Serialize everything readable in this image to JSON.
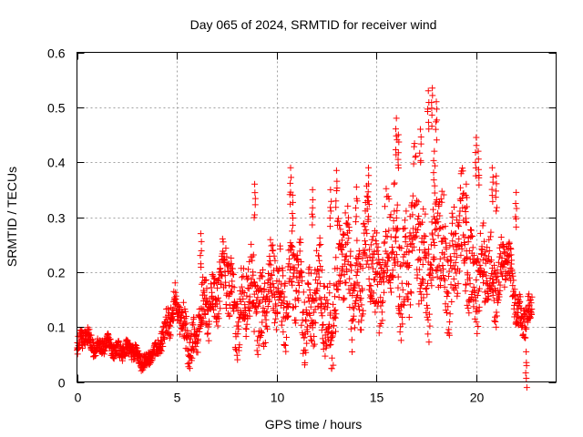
{
  "chart_data": {
    "type": "scatter",
    "title": "Day 065 of 2024, SRMTID for receiver wind",
    "xlabel": "GPS time / hours",
    "ylabel": "SRMTID / TECUs",
    "xlim": [
      0,
      24
    ],
    "ylim": [
      0,
      0.6
    ],
    "xticks": [
      0,
      5,
      10,
      15,
      20
    ],
    "xtick_labels": [
      "0",
      "5",
      "10",
      "15",
      "20"
    ],
    "yticks": [
      0,
      0.1,
      0.2,
      0.3,
      0.4,
      0.5,
      0.6
    ],
    "ytick_labels": [
      "0",
      "0.1",
      "0.2",
      "0.3",
      "0.4",
      "0.5",
      "0.6"
    ],
    "grid": true,
    "marker": "plus",
    "color": "#ff0000",
    "series": [
      {
        "name": "wind",
        "profile": {
          "description": "approximate typical SRMTID level vs time (hours)",
          "x": [
            0,
            0.5,
            1,
            1.5,
            2,
            2.5,
            3,
            3.5,
            4,
            4.5,
            5,
            5.5,
            6,
            6.5,
            7,
            7.5,
            8,
            8.5,
            9,
            9.5,
            10,
            10.5,
            11,
            11.5,
            12,
            12.5,
            13,
            13.5,
            14,
            14.5,
            15,
            15.5,
            16,
            16.5,
            17,
            17.5,
            18,
            18.5,
            19,
            19.5,
            20,
            20.5,
            21,
            21.5,
            22,
            22.5,
            22.8
          ],
          "y": [
            0.06,
            0.08,
            0.07,
            0.06,
            0.065,
            0.055,
            0.05,
            0.04,
            0.05,
            0.12,
            0.13,
            0.09,
            0.08,
            0.14,
            0.18,
            0.17,
            0.15,
            0.13,
            0.16,
            0.15,
            0.17,
            0.18,
            0.16,
            0.15,
            0.14,
            0.12,
            0.18,
            0.2,
            0.19,
            0.21,
            0.2,
            0.22,
            0.24,
            0.22,
            0.25,
            0.24,
            0.23,
            0.22,
            0.25,
            0.23,
            0.21,
            0.18,
            0.2,
            0.22,
            0.14,
            0.12,
            0.12
          ]
        },
        "spread": {
          "x": [
            0,
            4,
            4.5,
            6,
            9,
            15,
            17,
            20,
            22,
            22.8
          ],
          "y": [
            0.02,
            0.015,
            0.03,
            0.05,
            0.08,
            0.1,
            0.12,
            0.09,
            0.04,
            0.03
          ]
        },
        "spikes": [
          {
            "x": 6.2,
            "y": 0.27
          },
          {
            "x": 8.9,
            "y": 0.36
          },
          {
            "x": 10.7,
            "y": 0.39
          },
          {
            "x": 10.8,
            "y": 0.34
          },
          {
            "x": 11.8,
            "y": 0.35
          },
          {
            "x": 12.7,
            "y": 0.35
          },
          {
            "x": 13.0,
            "y": 0.385
          },
          {
            "x": 14.0,
            "y": 0.355
          },
          {
            "x": 14.6,
            "y": 0.39
          },
          {
            "x": 16.0,
            "y": 0.48
          },
          {
            "x": 16.1,
            "y": 0.45
          },
          {
            "x": 17.2,
            "y": 0.46
          },
          {
            "x": 17.6,
            "y": 0.53
          },
          {
            "x": 17.8,
            "y": 0.535
          },
          {
            "x": 18.0,
            "y": 0.51
          },
          {
            "x": 17.9,
            "y": 0.42
          },
          {
            "x": 19.5,
            "y": 0.36
          },
          {
            "x": 20.0,
            "y": 0.445
          },
          {
            "x": 20.1,
            "y": 0.42
          },
          {
            "x": 20.8,
            "y": 0.39
          },
          {
            "x": 21.0,
            "y": 0.375
          },
          {
            "x": 22.0,
            "y": 0.345
          },
          {
            "x": 22.5,
            "y": 0.055
          }
        ]
      }
    ]
  }
}
